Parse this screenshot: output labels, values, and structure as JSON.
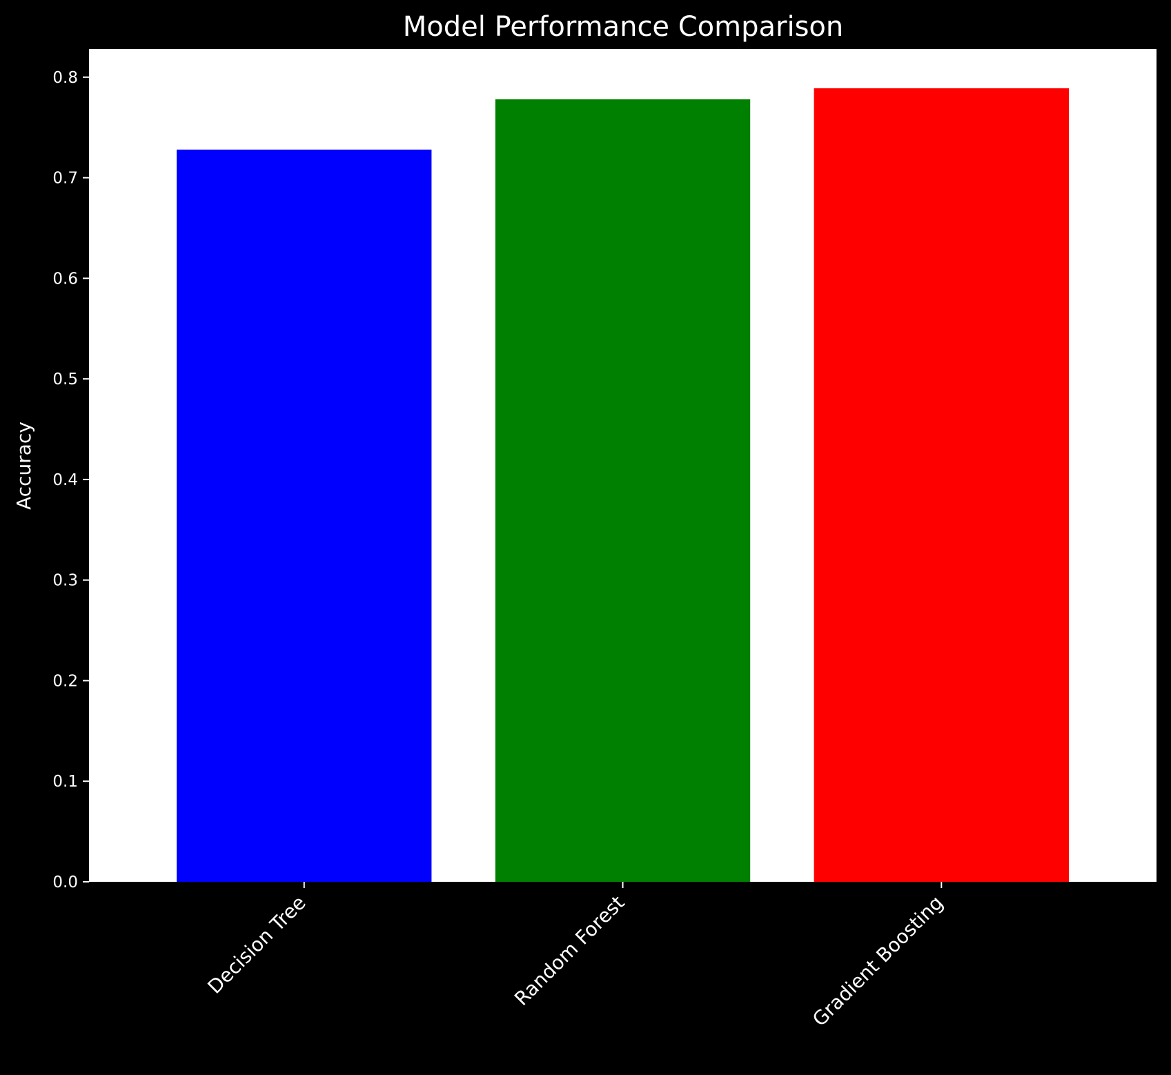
{
  "chart_data": {
    "type": "bar",
    "title": "Model Performance Comparison",
    "xlabel": "",
    "ylabel": "Accuracy",
    "categories": [
      "Decision Tree",
      "Random Forest",
      "Gradient Boosting"
    ],
    "values": [
      0.728,
      0.778,
      0.789
    ],
    "colors": [
      "#0000ff",
      "#008000",
      "#ff0000"
    ],
    "ylim": [
      0,
      0.828
    ],
    "yticks": [
      "0.0",
      "0.1",
      "0.2",
      "0.3",
      "0.4",
      "0.5",
      "0.6",
      "0.7",
      "0.8"
    ],
    "ytick_values": [
      0,
      0.1,
      0.2,
      0.3,
      0.4,
      0.5,
      0.6,
      0.7,
      0.8
    ],
    "grid": false,
    "legend": "none",
    "background": "#000000",
    "plot_background": "#ffffff",
    "text_color": "#ffffff"
  }
}
